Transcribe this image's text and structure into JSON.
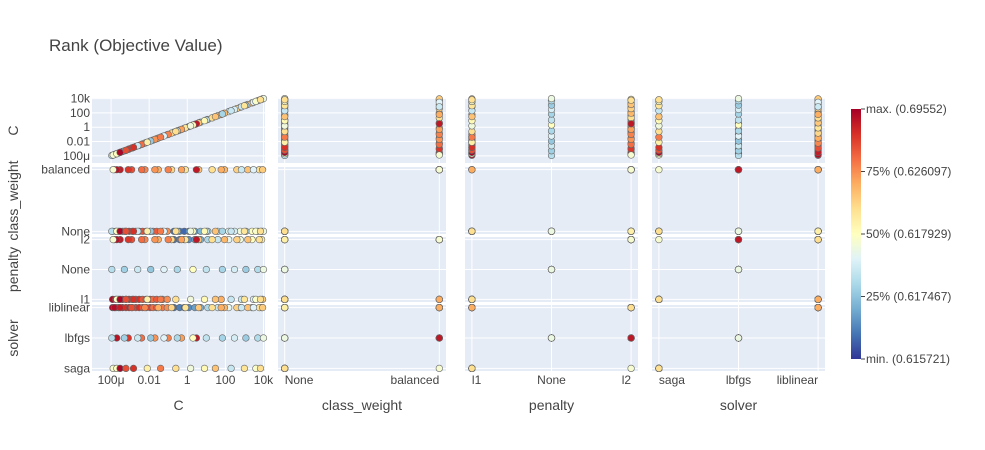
{
  "chart_data": {
    "type": "scatter",
    "title": "Rank (Objective Value)",
    "params": [
      "C",
      "class_weight",
      "penalty",
      "solver"
    ],
    "axis_titles": {
      "C": "C",
      "class_weight": "class_weight",
      "penalty": "penalty",
      "solver": "solver"
    },
    "scales": {
      "C": {
        "kind": "log",
        "range": [
          1e-05,
          12000
        ],
        "ticks": [
          "100μ",
          "0.01",
          "1",
          "100",
          "10k"
        ],
        "tick_values": [
          0.0001,
          0.01,
          1,
          100,
          10000
        ]
      },
      "class_weight": {
        "kind": "category",
        "categories": [
          "None",
          "balanced"
        ]
      },
      "penalty": {
        "kind": "category",
        "categories": [
          "l1",
          "None",
          "l2"
        ]
      },
      "solver": {
        "kind": "category",
        "categories": [
          "saga",
          "lbfgs",
          "liblinear"
        ]
      }
    },
    "colorbar": {
      "colorscale": "RdYlBu reversed",
      "colors": [
        "#313695",
        "#4575b4",
        "#74add1",
        "#abd9e9",
        "#e0f3f8",
        "#ffffbf",
        "#fee090",
        "#fdae61",
        "#f46d43",
        "#d73027",
        "#a50026"
      ],
      "ticks": [
        "max. (0.69552)",
        "75% (0.626097)",
        "50% (0.617929)",
        "25% (0.617467)",
        "min. (0.615721)"
      ]
    },
    "grid": true,
    "trials": [
      {
        "C": 0.00012,
        "class_weight": "None",
        "penalty": "l1",
        "solver": "liblinear",
        "rank": 0.98
      },
      {
        "C": 0.00018,
        "class_weight": "None",
        "penalty": "l1",
        "solver": "liblinear",
        "rank": 0.95
      },
      {
        "C": 0.00025,
        "class_weight": "None",
        "penalty": "l1",
        "solver": "liblinear",
        "rank": 0.93
      },
      {
        "C": 0.0004,
        "class_weight": "None",
        "penalty": "l1",
        "solver": "liblinear",
        "rank": 0.96
      },
      {
        "C": 0.0006,
        "class_weight": "None",
        "penalty": "l1",
        "solver": "liblinear",
        "rank": 0.9
      },
      {
        "C": 0.0009,
        "class_weight": "None",
        "penalty": "l1",
        "solver": "liblinear",
        "rank": 0.92
      },
      {
        "C": 0.0013,
        "class_weight": "None",
        "penalty": "l1",
        "solver": "liblinear",
        "rank": 0.88
      },
      {
        "C": 0.002,
        "class_weight": "None",
        "penalty": "l1",
        "solver": "liblinear",
        "rank": 0.86
      },
      {
        "C": 0.003,
        "class_weight": "None",
        "penalty": "l1",
        "solver": "liblinear",
        "rank": 0.9
      },
      {
        "C": 0.0045,
        "class_weight": "None",
        "penalty": "l1",
        "solver": "liblinear",
        "rank": 0.84
      },
      {
        "C": 0.007,
        "class_weight": "None",
        "penalty": "l1",
        "solver": "liblinear",
        "rank": 0.82
      },
      {
        "C": 0.011,
        "class_weight": "None",
        "penalty": "l1",
        "solver": "liblinear",
        "rank": 0.87
      },
      {
        "C": 0.016,
        "class_weight": "None",
        "penalty": "l1",
        "solver": "liblinear",
        "rank": 0.8
      },
      {
        "C": 0.025,
        "class_weight": "None",
        "penalty": "l1",
        "solver": "liblinear",
        "rank": 0.83
      },
      {
        "C": 0.05,
        "class_weight": "None",
        "penalty": "l1",
        "solver": "liblinear",
        "rank": 0.78
      },
      {
        "C": 0.09,
        "class_weight": "None",
        "penalty": "l1",
        "solver": "liblinear",
        "rank": 0.75
      },
      {
        "C": 0.2,
        "class_weight": "None",
        "penalty": "l2",
        "solver": "liblinear",
        "rank": 0.1
      },
      {
        "C": 0.4,
        "class_weight": "None",
        "penalty": "l2",
        "solver": "liblinear",
        "rank": 0.12
      },
      {
        "C": 0.7,
        "class_weight": "None",
        "penalty": "l2",
        "solver": "liblinear",
        "rank": 0.08
      },
      {
        "C": 1.2,
        "class_weight": "None",
        "penalty": "l2",
        "solver": "liblinear",
        "rank": 0.14
      },
      {
        "C": 2.5,
        "class_weight": "None",
        "penalty": "l2",
        "solver": "liblinear",
        "rank": 0.18
      },
      {
        "C": 5,
        "class_weight": "None",
        "penalty": "l2",
        "solver": "liblinear",
        "rank": 0.22
      },
      {
        "C": 12,
        "class_weight": "None",
        "penalty": "l2",
        "solver": "liblinear",
        "rank": 0.3
      },
      {
        "C": 40,
        "class_weight": "None",
        "penalty": "l2",
        "solver": "liblinear",
        "rank": 0.35
      },
      {
        "C": 150,
        "class_weight": "None",
        "penalty": "l2",
        "solver": "liblinear",
        "rank": 0.42
      },
      {
        "C": 600,
        "class_weight": "None",
        "penalty": "l2",
        "solver": "liblinear",
        "rank": 0.45
      },
      {
        "C": 2500,
        "class_weight": "None",
        "penalty": "l2",
        "solver": "liblinear",
        "rank": 0.5
      },
      {
        "C": 8000,
        "class_weight": "None",
        "penalty": "l2",
        "solver": "liblinear",
        "rank": 0.55
      },
      {
        "C": 0.00015,
        "class_weight": "balanced",
        "penalty": "l2",
        "solver": "liblinear",
        "rank": 0.97
      },
      {
        "C": 0.0003,
        "class_weight": "balanced",
        "penalty": "l2",
        "solver": "liblinear",
        "rank": 0.94
      },
      {
        "C": 0.0012,
        "class_weight": "balanced",
        "penalty": "l2",
        "solver": "liblinear",
        "rank": 0.85
      },
      {
        "C": 0.006,
        "class_weight": "balanced",
        "penalty": "l2",
        "solver": "liblinear",
        "rank": 0.76
      },
      {
        "C": 0.03,
        "class_weight": "balanced",
        "penalty": "l2",
        "solver": "liblinear",
        "rank": 0.7
      },
      {
        "C": 0.15,
        "class_weight": "balanced",
        "penalty": "l2",
        "solver": "liblinear",
        "rank": 0.62
      },
      {
        "C": 0.8,
        "class_weight": "balanced",
        "penalty": "l2",
        "solver": "liblinear",
        "rank": 0.58
      },
      {
        "C": 4,
        "class_weight": "balanced",
        "penalty": "l2",
        "solver": "liblinear",
        "rank": 0.65
      },
      {
        "C": 20,
        "class_weight": "balanced",
        "penalty": "l2",
        "solver": "liblinear",
        "rank": 0.6
      },
      {
        "C": 90,
        "class_weight": "balanced",
        "penalty": "l2",
        "solver": "liblinear",
        "rank": 0.68
      },
      {
        "C": 400,
        "class_weight": "balanced",
        "penalty": "l2",
        "solver": "liblinear",
        "rank": 0.63
      },
      {
        "C": 1500,
        "class_weight": "balanced",
        "penalty": "l2",
        "solver": "liblinear",
        "rank": 0.66
      },
      {
        "C": 6000,
        "class_weight": "balanced",
        "penalty": "l2",
        "solver": "liblinear",
        "rank": 0.6
      },
      {
        "C": 9000,
        "class_weight": "balanced",
        "penalty": "l1",
        "solver": "liblinear",
        "rank": 0.64
      },
      {
        "C": 3000,
        "class_weight": "balanced",
        "penalty": "l1",
        "solver": "liblinear",
        "rank": 0.4
      },
      {
        "C": 700,
        "class_weight": "balanced",
        "penalty": "l1",
        "solver": "liblinear",
        "rank": 0.36
      },
      {
        "C": 60,
        "class_weight": "balanced",
        "penalty": "l1",
        "solver": "liblinear",
        "rank": 0.7
      },
      {
        "C": 0.0002,
        "class_weight": "balanced",
        "penalty": "l2",
        "solver": "lbfgs",
        "rank": 0.96
      },
      {
        "C": 0.0008,
        "class_weight": "balanced",
        "penalty": "l2",
        "solver": "lbfgs",
        "rank": 0.89
      },
      {
        "C": 0.004,
        "class_weight": "balanced",
        "penalty": "l2",
        "solver": "lbfgs",
        "rank": 0.8
      },
      {
        "C": 0.02,
        "class_weight": "balanced",
        "penalty": "l2",
        "solver": "lbfgs",
        "rank": 0.74
      },
      {
        "C": 0.1,
        "class_weight": "balanced",
        "penalty": "l2",
        "solver": "lbfgs",
        "rank": 0.77
      },
      {
        "C": 0.5,
        "class_weight": "balanced",
        "penalty": "l2",
        "solver": "lbfgs",
        "rank": 0.72
      },
      {
        "C": 3,
        "class_weight": "balanced",
        "penalty": "l2",
        "solver": "lbfgs",
        "rank": 0.95
      },
      {
        "C": 0.00011,
        "class_weight": "None",
        "penalty": "None",
        "solver": "lbfgs",
        "rank": 0.32
      },
      {
        "C": 0.0005,
        "class_weight": "None",
        "penalty": "None",
        "solver": "lbfgs",
        "rank": 0.28
      },
      {
        "C": 0.0025,
        "class_weight": "None",
        "penalty": "None",
        "solver": "lbfgs",
        "rank": 0.36
      },
      {
        "C": 0.012,
        "class_weight": "None",
        "penalty": "None",
        "solver": "lbfgs",
        "rank": 0.26
      },
      {
        "C": 0.06,
        "class_weight": "None",
        "penalty": "None",
        "solver": "lbfgs",
        "rank": 0.4
      },
      {
        "C": 0.3,
        "class_weight": "None",
        "penalty": "None",
        "solver": "lbfgs",
        "rank": 0.3
      },
      {
        "C": 2,
        "class_weight": "None",
        "penalty": "None",
        "solver": "lbfgs",
        "rank": 0.5
      },
      {
        "C": 10,
        "class_weight": "None",
        "penalty": "None",
        "solver": "lbfgs",
        "rank": 0.34
      },
      {
        "C": 70,
        "class_weight": "None",
        "penalty": "None",
        "solver": "lbfgs",
        "rank": 0.29
      },
      {
        "C": 300,
        "class_weight": "None",
        "penalty": "None",
        "solver": "lbfgs",
        "rank": 0.38
      },
      {
        "C": 1200,
        "class_weight": "None",
        "penalty": "None",
        "solver": "lbfgs",
        "rank": 0.27
      },
      {
        "C": 5000,
        "class_weight": "None",
        "penalty": "None",
        "solver": "lbfgs",
        "rank": 0.31
      },
      {
        "C": 10000,
        "class_weight": "None",
        "penalty": "None",
        "solver": "lbfgs",
        "rank": 0.44
      },
      {
        "C": 0.00013,
        "class_weight": "balanced",
        "penalty": "l2",
        "solver": "saga",
        "rank": 0.47
      },
      {
        "C": 0.0002,
        "class_weight": "None",
        "penalty": "l1",
        "solver": "saga",
        "rank": 0.5
      },
      {
        "C": 0.0003,
        "class_weight": "None",
        "penalty": "l1",
        "solver": "saga",
        "rank": 0.99
      },
      {
        "C": 0.0006,
        "class_weight": "None",
        "penalty": "l1",
        "solver": "saga",
        "rank": 0.85
      },
      {
        "C": 0.0015,
        "class_weight": "None",
        "penalty": "l1",
        "solver": "saga",
        "rank": 0.9
      },
      {
        "C": 0.008,
        "class_weight": "None",
        "penalty": "l1",
        "solver": "saga",
        "rank": 0.55
      },
      {
        "C": 0.04,
        "class_weight": "None",
        "penalty": "l1",
        "solver": "saga",
        "rank": 0.78
      },
      {
        "C": 0.25,
        "class_weight": "None",
        "penalty": "l1",
        "solver": "saga",
        "rank": 0.6
      },
      {
        "C": 1.5,
        "class_weight": "None",
        "penalty": "l1",
        "solver": "saga",
        "rank": 0.45
      },
      {
        "C": 8,
        "class_weight": "None",
        "penalty": "l1",
        "solver": "saga",
        "rank": 0.52
      },
      {
        "C": 30,
        "class_weight": "None",
        "penalty": "l1",
        "solver": "saga",
        "rank": 0.66
      },
      {
        "C": 200,
        "class_weight": "None",
        "penalty": "l1",
        "solver": "saga",
        "rank": 0.35
      },
      {
        "C": 1000,
        "class_weight": "None",
        "penalty": "l1",
        "solver": "saga",
        "rank": 0.58
      },
      {
        "C": 4000,
        "class_weight": "None",
        "penalty": "l1",
        "solver": "saga",
        "rank": 0.48
      },
      {
        "C": 7000,
        "class_weight": "None",
        "penalty": "l1",
        "solver": "saga",
        "rank": 0.6
      }
    ]
  }
}
